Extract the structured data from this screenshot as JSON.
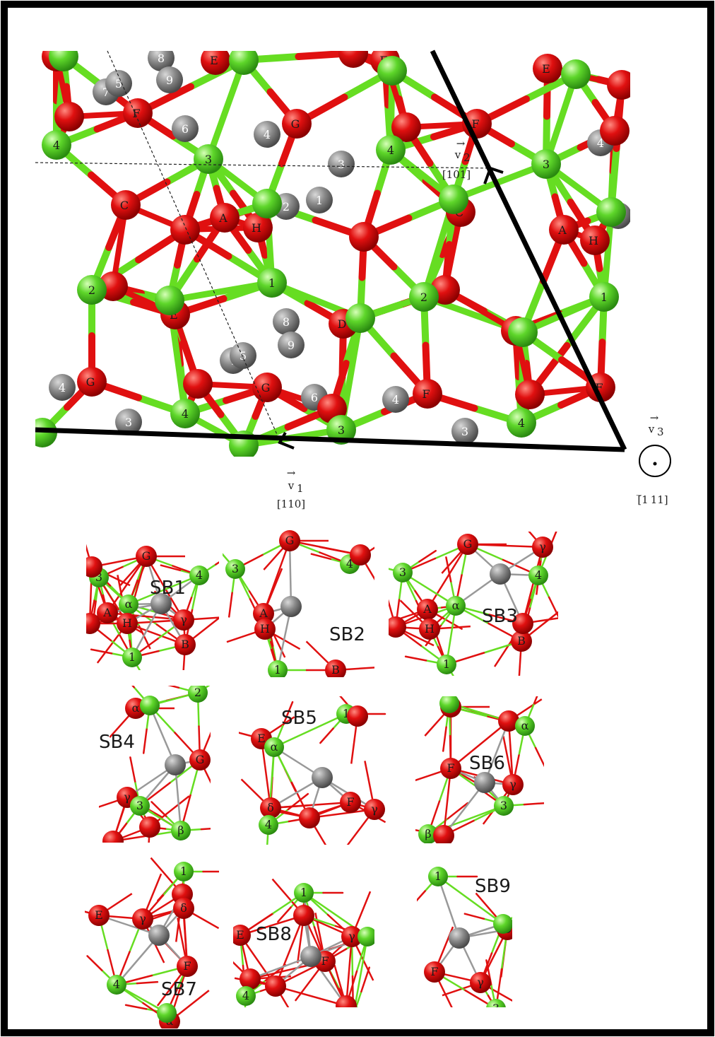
{
  "vectors": {
    "v1": {
      "symbol": "v",
      "sub": "1",
      "miller": "[110]"
    },
    "v2": {
      "symbol": "v",
      "sub": "2",
      "miller": "[101]"
    },
    "v3": {
      "symbol": "v",
      "sub": "3",
      "miller": "[̅1 11]"
    }
  },
  "lattice": {
    "red_labels": [
      "E",
      "F",
      "E",
      "F",
      "G",
      "F",
      "C",
      "A",
      "H",
      "C",
      "A",
      "H",
      "E",
      "D",
      "E",
      "G",
      "F",
      "G",
      "F"
    ],
    "green_labels": [
      "4",
      "3",
      "4",
      "3",
      "2",
      "1",
      "2",
      "1",
      "4",
      "3",
      "4"
    ],
    "gray_labels": [
      "8",
      "9",
      "7",
      "5",
      "6",
      "4",
      "3",
      "2",
      "1",
      "4",
      "2",
      "8",
      "9",
      "7",
      "5",
      "6",
      "4",
      "4",
      "3",
      "3"
    ]
  },
  "panels": [
    {
      "id": "SB1",
      "title": "SB1",
      "labels": [
        "G",
        "3",
        "4",
        "α",
        "A",
        "H",
        "γ",
        "B",
        "1"
      ]
    },
    {
      "id": "SB2",
      "title": "SB2",
      "labels": [
        "G",
        "3",
        "4",
        "A",
        "H",
        "1",
        "B"
      ]
    },
    {
      "id": "SB3",
      "title": "SB3",
      "labels": [
        "G",
        "γ",
        "3",
        "4",
        "A",
        "α",
        "H",
        "B",
        "1"
      ]
    },
    {
      "id": "SB4",
      "title": "SB4",
      "labels": [
        "α",
        "2",
        "G",
        "γ",
        "3",
        "β"
      ]
    },
    {
      "id": "SB5",
      "title": "SB5",
      "labels": [
        "1",
        "E",
        "α",
        "F",
        "γ",
        "δ",
        "4"
      ]
    },
    {
      "id": "SB6",
      "title": "SB6",
      "labels": [
        "1",
        "α",
        "F",
        "γ",
        "3",
        "β"
      ]
    },
    {
      "id": "SB7",
      "title": "SB7",
      "labels": [
        "1",
        "E",
        "β",
        "γ",
        "δ",
        "F",
        "4",
        "α"
      ]
    },
    {
      "id": "SB8",
      "title": "SB8",
      "labels": [
        "1",
        "E",
        "γ",
        "F",
        "4",
        "3"
      ]
    },
    {
      "id": "SB9",
      "title": "SB9",
      "labels": [
        "1",
        "α",
        "D",
        "F",
        "γ",
        "3"
      ]
    }
  ],
  "colors": {
    "red_atom": "#dd1111",
    "green_atom": "#44cc22",
    "gray_atom": "#808080",
    "border": "#000000"
  }
}
